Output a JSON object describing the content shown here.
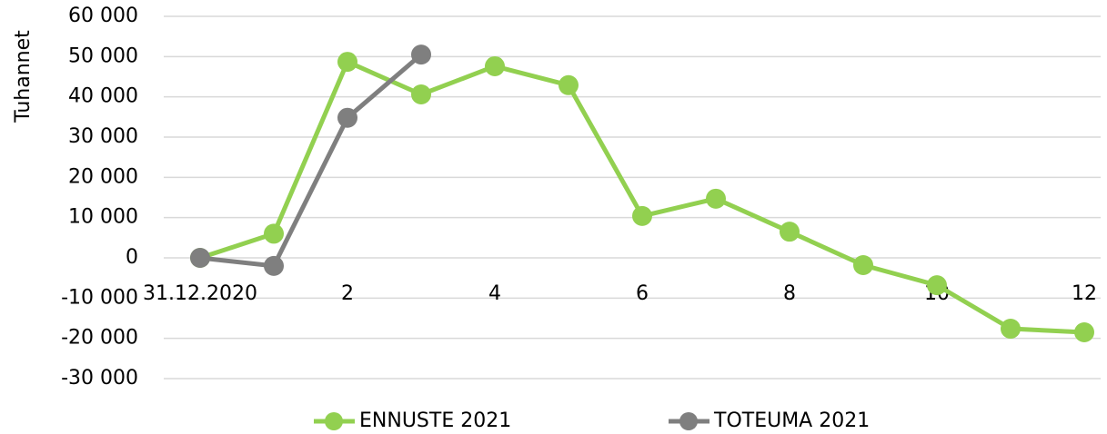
{
  "chart_data": {
    "type": "line",
    "y_label": "Tuhannet",
    "categories": [
      "31.12.2020",
      null,
      "2",
      null,
      "4",
      null,
      "6",
      null,
      "8",
      null,
      "10",
      null,
      "12"
    ],
    "series": [
      {
        "name": "ENNUSTE 2021",
        "color": "#92d050",
        "values": [
          0,
          6000,
          48700,
          40600,
          47600,
          42900,
          10400,
          14700,
          6500,
          -1800,
          -6800,
          -17600,
          -18500
        ]
      },
      {
        "name": "TOTEUMA 2021",
        "color": "#7f7f7f",
        "values": [
          0,
          -2000,
          34800,
          50500,
          null,
          null,
          null,
          null,
          null,
          null,
          null,
          null,
          null
        ]
      }
    ],
    "ylim": [
      -30000,
      60000
    ],
    "yticks": [
      {
        "value": -30000,
        "label": "-30 000"
      },
      {
        "value": -20000,
        "label": "-20 000"
      },
      {
        "value": -10000,
        "label": "-10 000"
      },
      0,
      {
        "value": 10000,
        "label": "10 000"
      },
      {
        "value": 20000,
        "label": "20 000"
      },
      {
        "value": 30000,
        "label": "30 000"
      },
      {
        "value": 40000,
        "label": "40 000"
      },
      {
        "value": 50000,
        "label": "50 000"
      },
      {
        "value": 60000,
        "label": "60 000"
      }
    ],
    "grid": true,
    "legend": "bottom"
  }
}
